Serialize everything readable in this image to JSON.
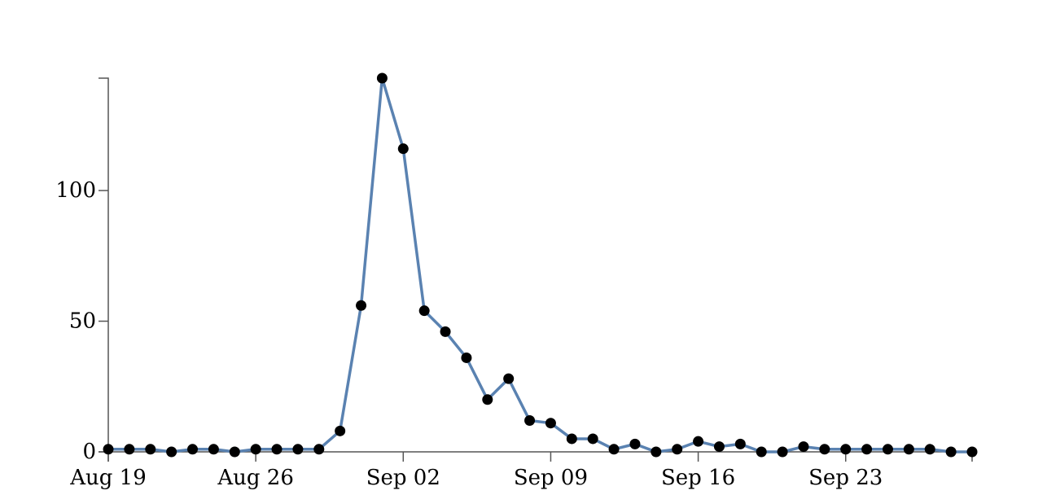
{
  "chart_data": {
    "type": "line",
    "title": "",
    "xlabel": "",
    "ylabel": "",
    "x_start": "2018-08-19",
    "x_end": "2018-09-29",
    "x": [
      "2018-08-19",
      "2018-08-20",
      "2018-08-21",
      "2018-08-22",
      "2018-08-23",
      "2018-08-24",
      "2018-08-25",
      "2018-08-26",
      "2018-08-27",
      "2018-08-28",
      "2018-08-29",
      "2018-08-30",
      "2018-08-31",
      "2018-09-01",
      "2018-09-02",
      "2018-09-03",
      "2018-09-04",
      "2018-09-05",
      "2018-09-06",
      "2018-09-07",
      "2018-09-08",
      "2018-09-09",
      "2018-09-10",
      "2018-09-11",
      "2018-09-12",
      "2018-09-13",
      "2018-09-14",
      "2018-09-15",
      "2018-09-16",
      "2018-09-17",
      "2018-09-18",
      "2018-09-19",
      "2018-09-20",
      "2018-09-21",
      "2018-09-22",
      "2018-09-23",
      "2018-09-24",
      "2018-09-25",
      "2018-09-26",
      "2018-09-27",
      "2018-09-28",
      "2018-09-29"
    ],
    "values": [
      1,
      1,
      1,
      0,
      1,
      1,
      0,
      1,
      1,
      1,
      1,
      8,
      56,
      143,
      116,
      54,
      46,
      36,
      20,
      28,
      12,
      11,
      5,
      5,
      1,
      3,
      0,
      1,
      4,
      2,
      3,
      0,
      0,
      2,
      1,
      1,
      1,
      1,
      1,
      1,
      0,
      0
    ],
    "ylim": [
      0,
      143
    ],
    "yticks": [
      0,
      50,
      100
    ],
    "xticks": [
      {
        "date": "2018-08-19",
        "label": "Aug 19"
      },
      {
        "date": "2018-08-26",
        "label": "Aug 26"
      },
      {
        "date": "2018-09-02",
        "label": "Sep 02"
      },
      {
        "date": "2018-09-09",
        "label": "Sep 09"
      },
      {
        "date": "2018-09-16",
        "label": "Sep 16"
      },
      {
        "date": "2018-09-23",
        "label": "Sep 23"
      }
    ],
    "grid": false,
    "legend": "none",
    "line_color": "#5a82b1",
    "point_color": "#000000"
  }
}
